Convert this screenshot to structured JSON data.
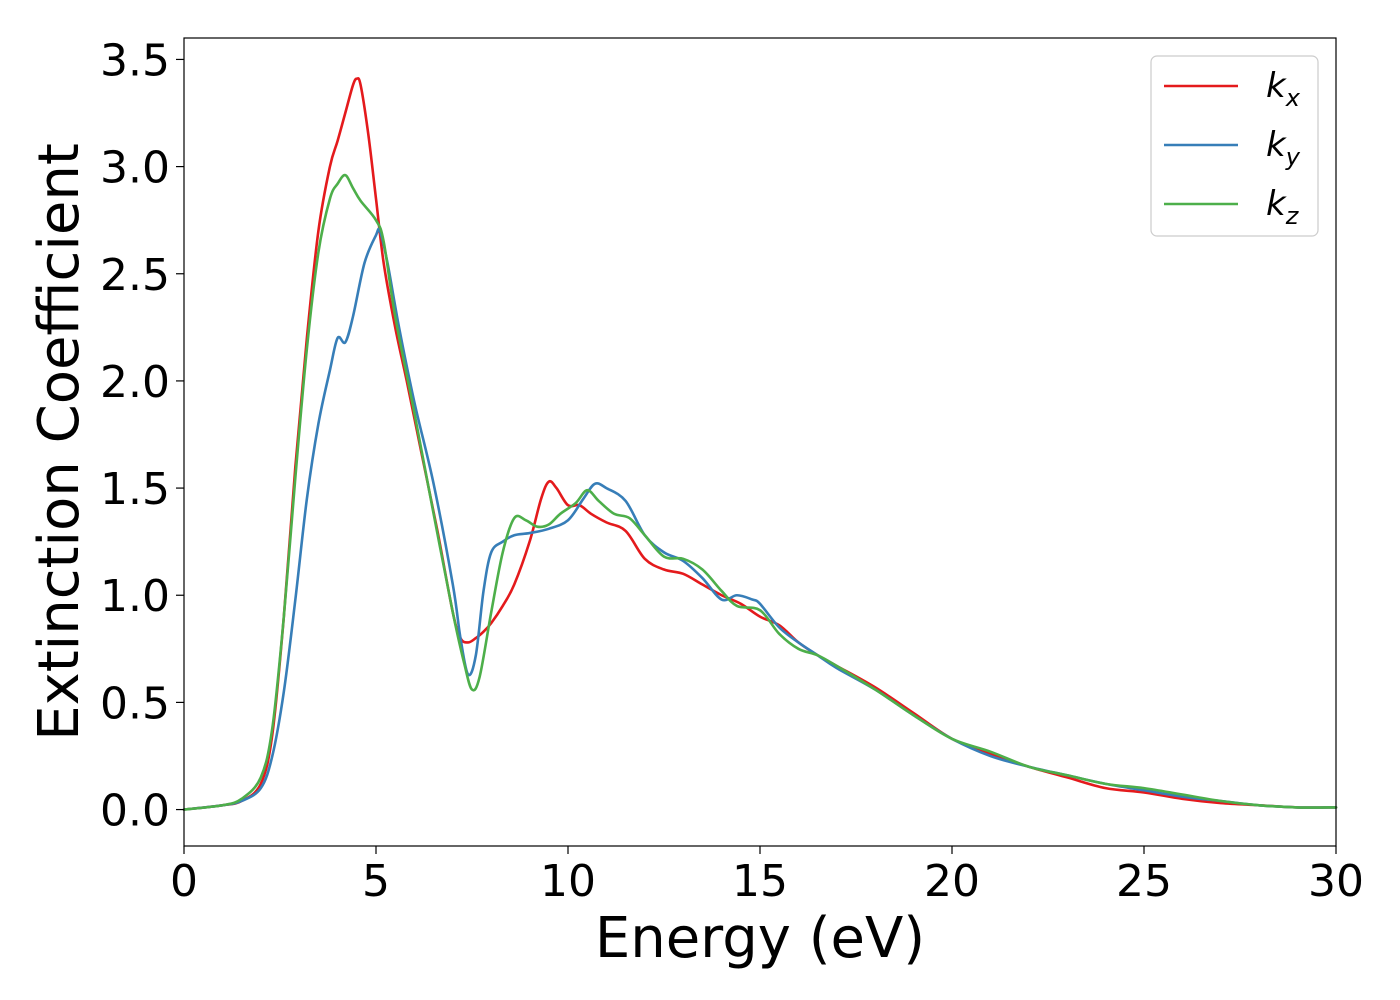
{
  "chart_data": {
    "type": "line",
    "title": "",
    "xlabel": "Energy (eV)",
    "ylabel": "Extinction Coefficient",
    "xlim": [
      0,
      30
    ],
    "ylim": [
      -0.17,
      3.6
    ],
    "xticks": [
      0,
      5,
      10,
      15,
      20,
      25,
      30
    ],
    "xtick_labels": [
      "0",
      "5",
      "10",
      "15",
      "20",
      "25",
      "30"
    ],
    "yticks": [
      0.0,
      0.5,
      1.0,
      1.5,
      2.0,
      2.5,
      3.0,
      3.5
    ],
    "ytick_labels": [
      "0.0",
      "0.5",
      "1.0",
      "1.5",
      "2.0",
      "2.5",
      "3.0",
      "3.5"
    ],
    "grid": false,
    "legend_position": "top-right",
    "series": [
      {
        "name": "k",
        "subscript": "x",
        "color": "#e41a1c",
        "x": [
          0,
          1,
          1.5,
          2.0,
          2.3,
          2.6,
          2.9,
          3.2,
          3.5,
          3.8,
          4.0,
          4.2,
          4.4,
          4.5,
          4.6,
          4.8,
          5.0,
          5.2,
          5.5,
          5.8,
          6.2,
          6.6,
          7.0,
          7.2,
          7.4,
          7.6,
          7.8,
          8.0,
          8.3,
          8.6,
          9.0,
          9.3,
          9.5,
          9.7,
          10.0,
          10.3,
          10.6,
          11.0,
          11.5,
          12.0,
          12.5,
          13.0,
          13.5,
          14.0,
          14.5,
          15.0,
          15.5,
          16.0,
          16.5,
          17.0,
          18.0,
          19.0,
          20.0,
          21.0,
          22.0,
          23.0,
          24.0,
          25.0,
          26.0,
          27.0,
          28.0,
          29.0,
          30.0
        ],
        "values": [
          0.0,
          0.02,
          0.04,
          0.12,
          0.35,
          0.9,
          1.6,
          2.2,
          2.7,
          3.0,
          3.12,
          3.25,
          3.38,
          3.41,
          3.38,
          3.15,
          2.85,
          2.55,
          2.25,
          2.0,
          1.65,
          1.3,
          0.92,
          0.8,
          0.78,
          0.8,
          0.83,
          0.87,
          0.95,
          1.05,
          1.25,
          1.45,
          1.53,
          1.5,
          1.42,
          1.42,
          1.38,
          1.34,
          1.3,
          1.17,
          1.12,
          1.1,
          1.05,
          1.0,
          0.96,
          0.9,
          0.86,
          0.78,
          0.72,
          0.67,
          0.57,
          0.45,
          0.33,
          0.26,
          0.2,
          0.15,
          0.1,
          0.08,
          0.05,
          0.03,
          0.02,
          0.01,
          0.01
        ]
      },
      {
        "name": "k",
        "subscript": "y",
        "color": "#377eb8",
        "x": [
          0,
          1,
          1.5,
          2.0,
          2.3,
          2.6,
          2.9,
          3.2,
          3.5,
          3.8,
          4.0,
          4.2,
          4.4,
          4.7,
          5.0,
          5.1,
          5.3,
          5.6,
          6.0,
          6.5,
          7.0,
          7.2,
          7.4,
          7.6,
          7.8,
          8.0,
          8.3,
          8.6,
          9.0,
          9.5,
          10.0,
          10.4,
          10.7,
          11.0,
          11.5,
          12.0,
          12.5,
          13.0,
          13.5,
          14.0,
          14.4,
          14.8,
          15.0,
          15.5,
          16.0,
          16.5,
          17.0,
          18.0,
          19.0,
          20.0,
          21.0,
          22.0,
          23.0,
          24.0,
          25.0,
          26.0,
          27.0,
          28.0,
          29.0,
          30.0
        ],
        "values": [
          0.0,
          0.02,
          0.04,
          0.1,
          0.25,
          0.55,
          0.98,
          1.45,
          1.8,
          2.05,
          2.2,
          2.18,
          2.3,
          2.55,
          2.68,
          2.7,
          2.55,
          2.25,
          1.9,
          1.52,
          1.05,
          0.8,
          0.63,
          0.72,
          1.02,
          1.2,
          1.25,
          1.28,
          1.29,
          1.31,
          1.35,
          1.45,
          1.52,
          1.5,
          1.44,
          1.28,
          1.2,
          1.16,
          1.08,
          0.98,
          1.0,
          0.98,
          0.96,
          0.85,
          0.78,
          0.72,
          0.66,
          0.56,
          0.44,
          0.33,
          0.25,
          0.2,
          0.16,
          0.12,
          0.09,
          0.06,
          0.04,
          0.02,
          0.01,
          0.01
        ]
      },
      {
        "name": "k",
        "subscript": "z",
        "color": "#4daf4a",
        "x": [
          0,
          1,
          1.5,
          2.0,
          2.3,
          2.6,
          2.9,
          3.2,
          3.5,
          3.8,
          4.0,
          4.2,
          4.4,
          4.6,
          5.0,
          5.2,
          5.5,
          6.0,
          6.5,
          7.0,
          7.3,
          7.5,
          7.7,
          8.0,
          8.3,
          8.6,
          8.9,
          9.2,
          9.5,
          9.8,
          10.2,
          10.5,
          10.8,
          11.2,
          11.6,
          12.0,
          12.5,
          13.0,
          13.5,
          14.0,
          14.4,
          15.0,
          15.5,
          16.0,
          16.5,
          17.0,
          18.0,
          19.0,
          20.0,
          21.0,
          22.0,
          23.0,
          24.0,
          25.0,
          26.0,
          27.0,
          28.0,
          29.0,
          30.0
        ],
        "values": [
          0.0,
          0.02,
          0.05,
          0.15,
          0.38,
          0.9,
          1.55,
          2.15,
          2.6,
          2.85,
          2.92,
          2.96,
          2.9,
          2.84,
          2.75,
          2.65,
          2.3,
          1.85,
          1.38,
          0.92,
          0.68,
          0.56,
          0.62,
          0.92,
          1.2,
          1.36,
          1.35,
          1.32,
          1.33,
          1.38,
          1.43,
          1.49,
          1.44,
          1.38,
          1.36,
          1.28,
          1.18,
          1.17,
          1.12,
          1.02,
          0.95,
          0.93,
          0.82,
          0.75,
          0.72,
          0.67,
          0.56,
          0.44,
          0.33,
          0.27,
          0.2,
          0.16,
          0.12,
          0.1,
          0.07,
          0.04,
          0.02,
          0.01,
          0.01
        ]
      }
    ]
  }
}
